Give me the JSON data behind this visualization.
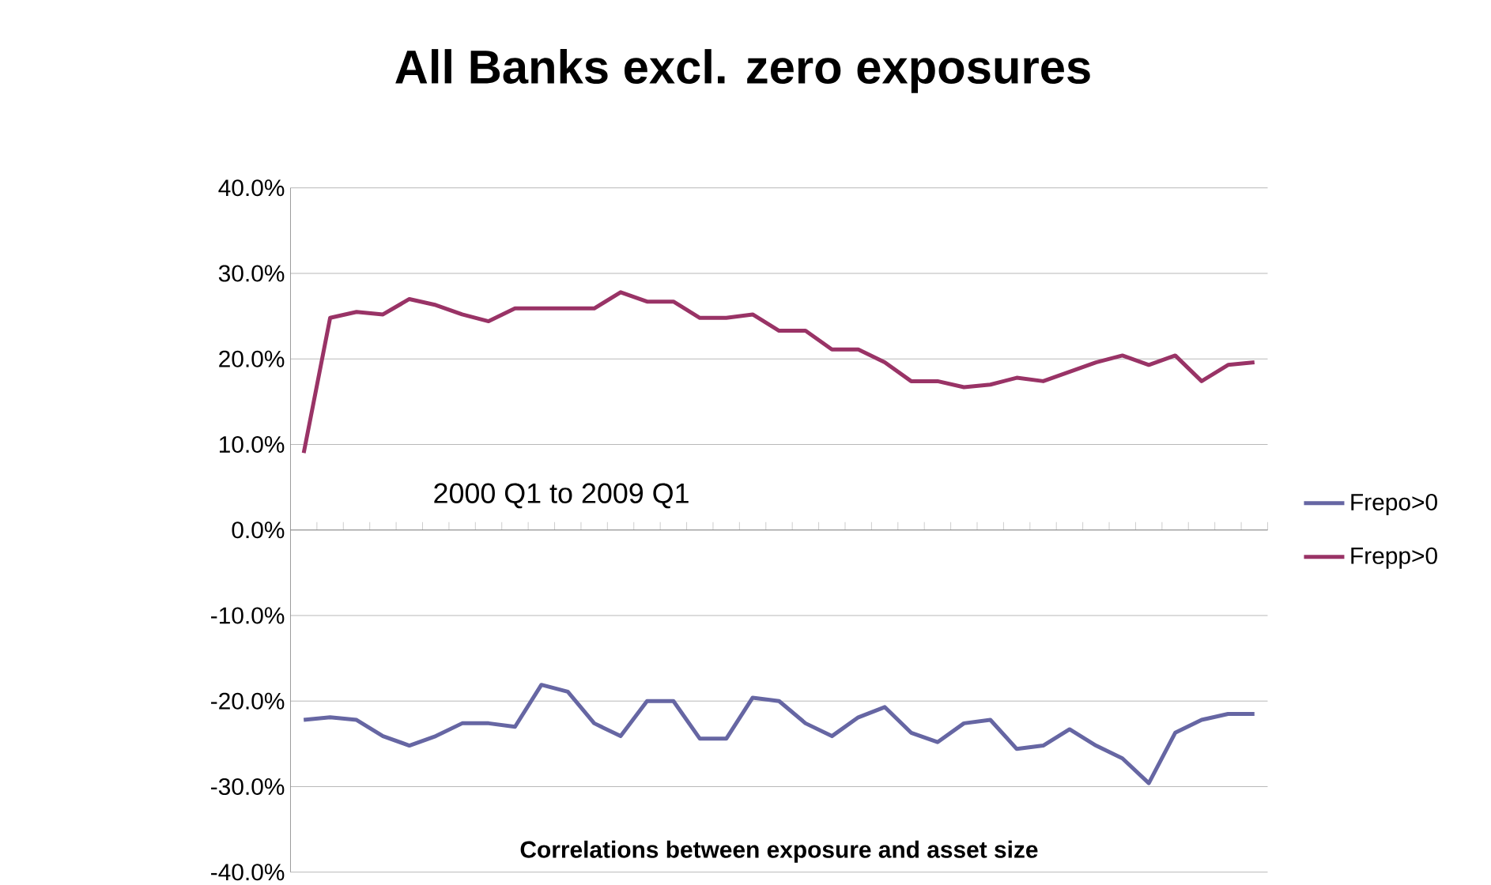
{
  "chart_data": {
    "type": "line",
    "title": "All Banks excl. zero exposures",
    "categories": [
      null,
      null,
      null,
      null,
      null,
      null,
      null,
      null,
      null,
      null,
      null,
      null,
      null,
      null,
      null,
      null,
      null,
      null,
      null,
      null,
      null,
      null,
      null,
      null,
      null,
      null,
      null,
      null,
      null,
      null,
      null,
      null,
      null,
      null,
      null,
      null,
      null
    ],
    "series": [
      {
        "name": "Frepo>0",
        "color": "#6666a3",
        "values": [
          -22.2,
          -21.9,
          -22.2,
          -24.1,
          -25.2,
          -24.1,
          -22.6,
          -22.6,
          -23.0,
          -18.1,
          -18.9,
          -22.6,
          -24.1,
          -20.0,
          -20.0,
          -24.4,
          -24.4,
          -19.6,
          -20.0,
          -22.6,
          -24.1,
          -21.9,
          -20.7,
          -23.7,
          -24.8,
          -22.6,
          -22.2,
          -25.6,
          -25.2,
          -23.3,
          -25.2,
          -26.7,
          -29.6,
          -23.7,
          -22.2,
          -21.5,
          -21.5
        ]
      },
      {
        "name": "Frepp>0",
        "color": "#993366",
        "values": [
          9.0,
          24.8,
          25.5,
          25.2,
          27.0,
          26.3,
          25.2,
          24.4,
          25.9,
          25.9,
          25.9,
          25.9,
          27.8,
          26.7,
          26.7,
          24.8,
          24.8,
          25.2,
          23.3,
          23.3,
          21.1,
          21.1,
          19.6,
          17.4,
          17.4,
          16.7,
          17.0,
          17.8,
          17.4,
          18.5,
          19.6,
          20.4,
          19.3,
          20.4,
          17.4,
          19.3,
          19.6
        ]
      }
    ],
    "ylim": [
      -40,
      40
    ],
    "yticks": [
      {
        "value": -40,
        "label": "-40.0%"
      },
      {
        "value": -30,
        "label": "-30.0%"
      },
      {
        "value": -20,
        "label": "-20.0%"
      },
      {
        "value": -10,
        "label": "-10.0%"
      },
      {
        "value": 0,
        "label": "0.0%"
      },
      {
        "value": 10,
        "label": "10.0%"
      },
      {
        "value": 20,
        "label": "20.0%"
      },
      {
        "value": 30,
        "label": "30.0%"
      },
      {
        "value": 40,
        "label": "40.0%"
      }
    ],
    "grid": "y",
    "legend": "right",
    "marker": "none",
    "line_style": "solid",
    "annotations": [
      "2000 Q1  to 2009  Q1",
      "Correlations between exposure and asset size"
    ]
  }
}
